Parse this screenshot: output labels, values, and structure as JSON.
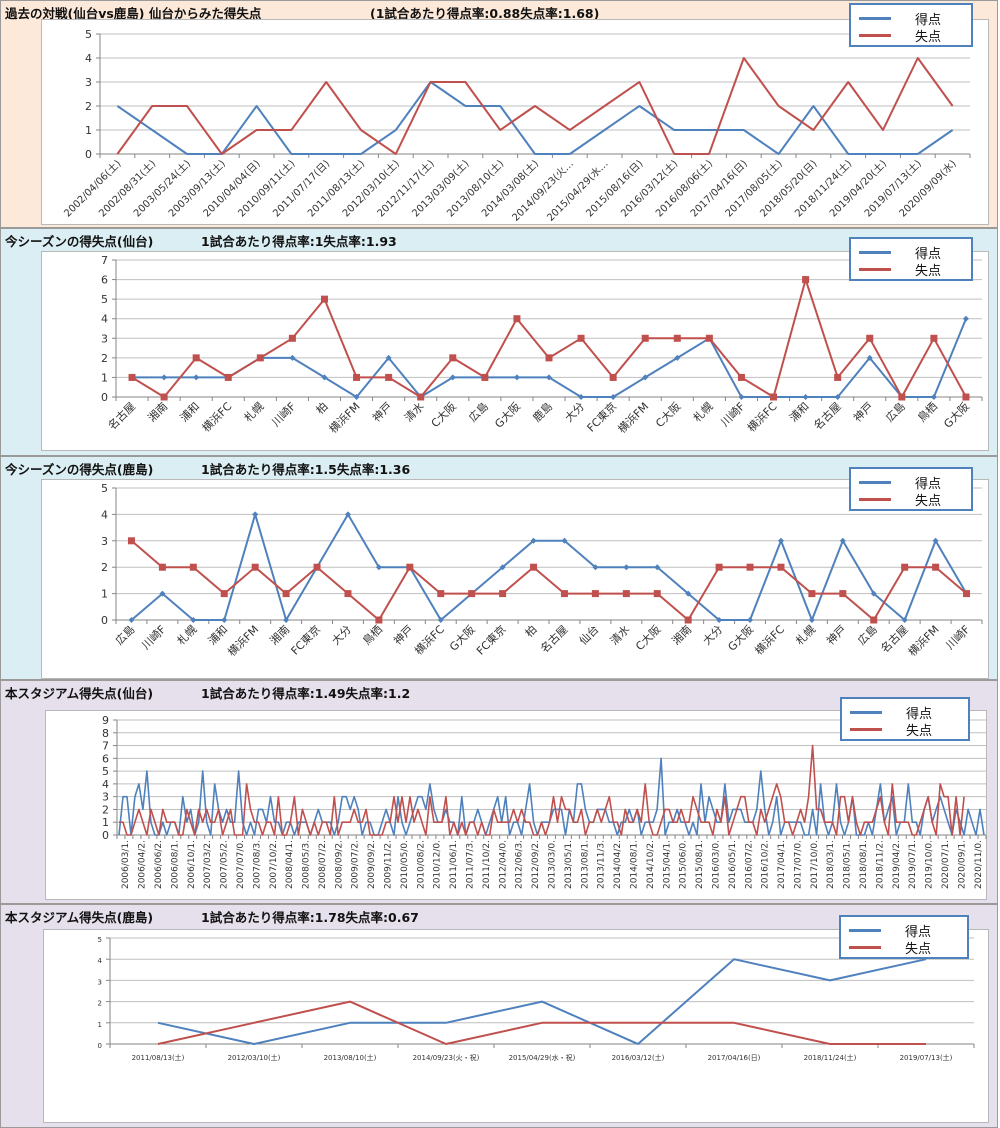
{
  "colors": {
    "scored": "#4f81bd",
    "conceded": "#c0504d",
    "grid": "#bfbfbf",
    "axis": "#868686"
  },
  "legend": {
    "scored": "得点",
    "conceded": "失点"
  },
  "chart_data": [
    {
      "type": "line",
      "title": "過去の対戦(仙台vs鹿島) 仙台からみた得失点",
      "subtitle": "(1試合あたり得点率:0.88失点率:1.68)",
      "ylim": [
        0,
        5
      ],
      "yticks": [
        0,
        1,
        2,
        3,
        4,
        5
      ],
      "grid": true,
      "legend_position": "top-right",
      "categories": [
        "2002/04/06(土)",
        "2002/08/31(土)",
        "2003/05/24(土)",
        "2003/09/13(土)",
        "2010/04/04(日)",
        "2010/09/11(土)",
        "2011/07/17(日)",
        "2011/08/13(土)",
        "2012/03/10(土)",
        "2012/11/17(土)",
        "2013/03/09(土)",
        "2013/08/10(土)",
        "2014/03/08(土)",
        "2014/09/23(火…",
        "2015/04/29(水…",
        "2015/08/16(日)",
        "2016/03/12(土)",
        "2016/08/06(土)",
        "2017/04/16(日)",
        "2017/08/05(土)",
        "2018/05/20(日)",
        "2018/11/24(土)",
        "2019/04/20(土)",
        "2019/07/13(土)",
        "2020/09/09(水)"
      ],
      "series": [
        {
          "name": "得点",
          "values": [
            2,
            1,
            0,
            0,
            2,
            0,
            0,
            0,
            1,
            3,
            2,
            2,
            0,
            0,
            1,
            2,
            1,
            1,
            1,
            0,
            2,
            0,
            0,
            0,
            1
          ]
        },
        {
          "name": "失点",
          "values": [
            0,
            2,
            2,
            0,
            1,
            1,
            3,
            1,
            0,
            3,
            3,
            1,
            2,
            1,
            2,
            3,
            0,
            0,
            4,
            2,
            1,
            3,
            1,
            4,
            2
          ]
        }
      ]
    },
    {
      "type": "line",
      "title": "今シーズンの得失点(仙台)",
      "subtitle": "1試合あたり得点率:1失点率:1.93",
      "ylim": [
        0,
        7
      ],
      "yticks": [
        0,
        1,
        2,
        3,
        4,
        5,
        6,
        7
      ],
      "grid": true,
      "markers": true,
      "legend_position": "top-right",
      "categories": [
        "名古屋",
        "湘南",
        "浦和",
        "横浜FC",
        "札幌",
        "川崎F",
        "柏",
        "横浜FM",
        "神戸",
        "清水",
        "C大阪",
        "広島",
        "G大阪",
        "鹿島",
        "大分",
        "FC東京",
        "横浜FM",
        "C大阪",
        "札幌",
        "川崎F",
        "横浜FC",
        "浦和",
        "名古屋",
        "神戸",
        "広島",
        "鳥栖",
        "G大阪"
      ],
      "series": [
        {
          "name": "得点",
          "values": [
            1,
            1,
            1,
            1,
            2,
            2,
            1,
            0,
            2,
            0,
            1,
            1,
            1,
            1,
            0,
            0,
            1,
            2,
            3,
            0,
            0,
            0,
            0,
            2,
            0,
            0,
            4
          ]
        },
        {
          "name": "失点",
          "values": [
            1,
            0,
            2,
            1,
            2,
            3,
            5,
            1,
            1,
            0,
            2,
            1,
            4,
            2,
            3,
            1,
            3,
            3,
            3,
            1,
            0,
            6,
            1,
            3,
            0,
            3,
            0
          ]
        }
      ]
    },
    {
      "type": "line",
      "title": "今シーズンの得失点(鹿島)",
      "subtitle": "1試合あたり得点率:1.5失点率:1.36",
      "ylim": [
        0,
        5
      ],
      "yticks": [
        0,
        1,
        2,
        3,
        4,
        5
      ],
      "grid": true,
      "markers": true,
      "legend_position": "top-right",
      "categories": [
        "広島",
        "川崎F",
        "札幌",
        "浦和",
        "横浜FM",
        "湘南",
        "FC東京",
        "大分",
        "鳥栖",
        "神戸",
        "横浜FC",
        "G大阪",
        "FC東京",
        "柏",
        "名古屋",
        "仙台",
        "清水",
        "C大阪",
        "湘南",
        "大分",
        "G大阪",
        "横浜FC",
        "札幌",
        "神戸",
        "広島",
        "名古屋",
        "横浜FM",
        "川崎F"
      ],
      "series": [
        {
          "name": "得点",
          "values": [
            0,
            1,
            0,
            0,
            4,
            0,
            2,
            4,
            2,
            2,
            0,
            1,
            2,
            3,
            3,
            2,
            2,
            2,
            1,
            0,
            0,
            3,
            0,
            3,
            1,
            0,
            3,
            1
          ]
        },
        {
          "name": "失点",
          "values": [
            3,
            2,
            2,
            1,
            2,
            1,
            2,
            1,
            0,
            2,
            1,
            1,
            1,
            2,
            1,
            1,
            1,
            1,
            0,
            2,
            2,
            2,
            1,
            1,
            0,
            2,
            2,
            1
          ]
        }
      ]
    },
    {
      "type": "line",
      "title": "本スタジアム得失点(仙台)",
      "subtitle": "1試合あたり得点率:1.49失点率:1.2",
      "ylim": [
        0,
        9
      ],
      "yticks": [
        0,
        1,
        2,
        3,
        4,
        5,
        6,
        7,
        8,
        9
      ],
      "grid": true,
      "legend_position": "top-right",
      "tick_labels": [
        "2006/03/1.",
        "2006/04/2.",
        "2006/06/2.",
        "2006/08/1.",
        "2006/10/1.",
        "2007/03/2.",
        "2007/05/2.",
        "2007/07/0.",
        "2007/08/3.",
        "2007/10/2.",
        "2008/04/1.",
        "2008/05/3.",
        "2008/07/2.",
        "2008/09/2.",
        "2009/07/2.",
        "2009/09/2.",
        "2009/11/2.",
        "2010/05/0.",
        "2010/08/2.",
        "2010/12/0.",
        "2011/06/1.",
        "2011/07/3.",
        "2011/10/2.",
        "2012/04/0.",
        "2012/06/3.",
        "2012/09/2.",
        "2013/03/0.",
        "2013/05/1.",
        "2013/08/1.",
        "2013/11/3.",
        "2014/04/2.",
        "2014/08/1.",
        "2014/10/2.",
        "2015/04/1.",
        "2015/06/0.",
        "2015/08/1.",
        "2016/03/0.",
        "2016/05/1.",
        "2016/07/2.",
        "2016/10/2.",
        "2017/04/1.",
        "2017/07/0.",
        "2017/10/0.",
        "2018/03/1.",
        "2018/05/1.",
        "2018/08/1.",
        "2018/11/2.",
        "2019/04/2.",
        "2019/07/1.",
        "2019/10/0.",
        "2020/07/1.",
        "2020/09/1.",
        "2020/11/0."
      ],
      "series": [
        {
          "name": "得点",
          "values": [
            0,
            3,
            3,
            0,
            3,
            4,
            2,
            5,
            1,
            0,
            0,
            1,
            0,
            1,
            1,
            0,
            3,
            1,
            2,
            0,
            1,
            5,
            1,
            0,
            4,
            2,
            1,
            2,
            1,
            1,
            5,
            1,
            0,
            1,
            0,
            2,
            2,
            1,
            3,
            1,
            1,
            0,
            1,
            1,
            0,
            1,
            1,
            1,
            0,
            1,
            2,
            1,
            1,
            1,
            0,
            1,
            3,
            3,
            2,
            3,
            2,
            0,
            1,
            1,
            0,
            0,
            1,
            2,
            1,
            0,
            3,
            1,
            0,
            1,
            2,
            3,
            3,
            2,
            4,
            2,
            1,
            1,
            2,
            1,
            1,
            0,
            3,
            0,
            1,
            1,
            2,
            1,
            0,
            1,
            2,
            3,
            1,
            3,
            0,
            1,
            1,
            0,
            2,
            4,
            1,
            0,
            1,
            1,
            1,
            2,
            2,
            2,
            0,
            2,
            1,
            4,
            4,
            2,
            1,
            1,
            2,
            2,
            2,
            1,
            1,
            0,
            1,
            1,
            2,
            1,
            2,
            0,
            1,
            1,
            1,
            2,
            6,
            0,
            1,
            1,
            2,
            1,
            1,
            0,
            1,
            0,
            4,
            1,
            3,
            2,
            1,
            1,
            4,
            1,
            2,
            2,
            2,
            1,
            1,
            1,
            2,
            5,
            2,
            0,
            1,
            3,
            0,
            1,
            1,
            1,
            1,
            1,
            0,
            0,
            2,
            0,
            4,
            1,
            0,
            1,
            4,
            1,
            0,
            1,
            3,
            0,
            0,
            0,
            1,
            0,
            2,
            4,
            1,
            2,
            3,
            0,
            1,
            1,
            4,
            1,
            1,
            0,
            2,
            3,
            1,
            2,
            3,
            2,
            1,
            0,
            2,
            1,
            0,
            2,
            1,
            0,
            2,
            0
          ]
        },
        {
          "name": "失点",
          "values": [
            1,
            1,
            0,
            0,
            1,
            2,
            1,
            0,
            2,
            1,
            0,
            2,
            1,
            1,
            1,
            0,
            0,
            2,
            1,
            0,
            2,
            1,
            2,
            1,
            1,
            2,
            0,
            1,
            2,
            0,
            0,
            0,
            4,
            2,
            1,
            1,
            0,
            1,
            1,
            0,
            3,
            0,
            0,
            1,
            3,
            0,
            2,
            1,
            0,
            1,
            0,
            1,
            1,
            0,
            3,
            0,
            1,
            1,
            1,
            2,
            1,
            1,
            2,
            0,
            0,
            0,
            0,
            1,
            1,
            3,
            1,
            3,
            1,
            3,
            1,
            2,
            1,
            0,
            3,
            1,
            1,
            1,
            3,
            0,
            1,
            0,
            1,
            0,
            1,
            1,
            0,
            1,
            0,
            0,
            2,
            1,
            1,
            1,
            1,
            2,
            1,
            2,
            1,
            1,
            0,
            0,
            1,
            0,
            1,
            3,
            1,
            3,
            2,
            2,
            1,
            1,
            2,
            0,
            1,
            1,
            2,
            1,
            2,
            3,
            1,
            1,
            0,
            2,
            1,
            1,
            2,
            1,
            4,
            1,
            0,
            0,
            1,
            2,
            2,
            1,
            1,
            2,
            1,
            1,
            3,
            2,
            1,
            1,
            1,
            0,
            2,
            1,
            3,
            0,
            1,
            2,
            3,
            3,
            1,
            1,
            0,
            2,
            1,
            2,
            3,
            4,
            3,
            1,
            1,
            0,
            1,
            2,
            1,
            3,
            7,
            2,
            2,
            1,
            1,
            1,
            0,
            3,
            3,
            1,
            3,
            1,
            0,
            1,
            1,
            1,
            2,
            3,
            1,
            0,
            4,
            1,
            1,
            1,
            1,
            0,
            0,
            1,
            2,
            3,
            1,
            0,
            4,
            3,
            3,
            0,
            3,
            0,
            3
          ]
        }
      ]
    },
    {
      "type": "line",
      "title": "本スタジアム得失点(鹿島)",
      "subtitle": "1試合あたり得点率:1.78失点率:0.67",
      "ylim": [
        0,
        5
      ],
      "yticks": [
        0,
        1,
        2,
        3,
        4,
        5
      ],
      "grid": true,
      "legend_position": "top-right",
      "categories": [
        "2011/08/13(土)",
        "2012/03/10(土)",
        "2013/08/10(土)",
        "2014/09/23(火・祝)",
        "2015/04/29(水・祝)",
        "2016/03/12(土)",
        "2017/04/16(日)",
        "2018/11/24(土)",
        "2019/07/13(土)"
      ],
      "series": [
        {
          "name": "得点",
          "values": [
            1,
            0,
            1,
            1,
            2,
            0,
            4,
            3,
            4
          ]
        },
        {
          "name": "失点",
          "values": [
            0,
            1,
            2,
            0,
            1,
            1,
            1,
            0,
            0
          ]
        }
      ]
    }
  ]
}
